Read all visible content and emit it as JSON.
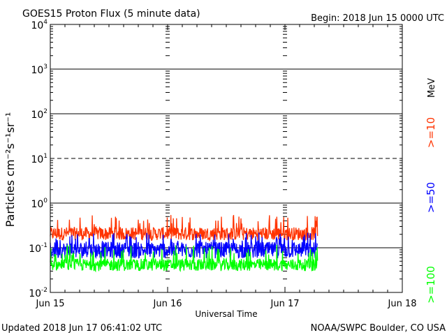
{
  "header": {
    "title": "GOES15 Proton Flux (5 minute data)",
    "begin": "Begin: 2018 Jun 15 0000 UTC"
  },
  "footer": {
    "updated": "Updated 2018 Jun 17 06:41:02 UTC",
    "credit": "NOAA/SWPC Boulder, CO USA"
  },
  "chart_data": {
    "type": "line",
    "title": "GOES15 Proton Flux (5 minute data)",
    "xlabel": "Universal Time",
    "ylabel": "Particles cm⁻²s⁻¹sr⁻¹",
    "yscale": "log",
    "ylim": [
      0.01,
      10000
    ],
    "xlim": [
      "2018-06-15T00:00",
      "2018-06-18T00:00"
    ],
    "x_ticks": [
      "Jun 15",
      "Jun 16",
      "Jun 17",
      "Jun 18"
    ],
    "y_ticks": [
      {
        "base": "10",
        "exp": "-2"
      },
      {
        "base": "10",
        "exp": "-1"
      },
      {
        "base": "10",
        "exp": "0"
      },
      {
        "base": "10",
        "exp": "1"
      },
      {
        "base": "10",
        "exp": "2"
      },
      {
        "base": "10",
        "exp": "3"
      },
      {
        "base": "10",
        "exp": "4"
      }
    ],
    "threshold_dashed_at": 10,
    "unit_label": "MeV",
    "data_end": "2018-06-17T06:40",
    "series": [
      {
        "name": ">=10",
        "color": "#ff3300",
        "typical": 0.2,
        "min": 0.13,
        "max": 0.55
      },
      {
        "name": ">=50",
        "color": "#0000ff",
        "typical": 0.085,
        "min": 0.05,
        "max": 0.22
      },
      {
        "name": ">=100",
        "color": "#00ff00",
        "typical": 0.04,
        "min": 0.027,
        "max": 0.12
      }
    ]
  }
}
